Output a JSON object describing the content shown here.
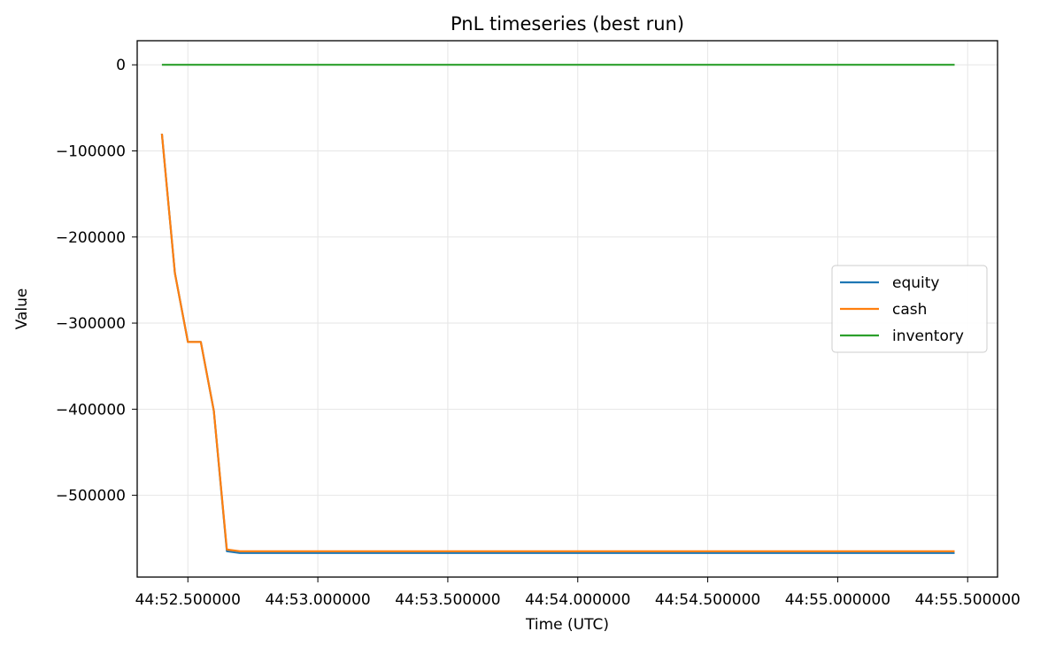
{
  "chart_data": {
    "type": "line",
    "title": "PnL timeseries (best run)",
    "xlabel": "Time (UTC)",
    "ylabel": "Value",
    "x": [
      52.4,
      52.45,
      52.5,
      52.55,
      52.6,
      52.65,
      52.7,
      52.75,
      52.8,
      53.0,
      53.5,
      54.0,
      54.5,
      55.0,
      55.45
    ],
    "xlim": [
      52.305,
      55.615
    ],
    "ylim": [
      -595000,
      28000
    ],
    "xticks": [
      52.5,
      53.0,
      53.5,
      54.0,
      54.5,
      55.0,
      55.5
    ],
    "xtick_labels": [
      "44:52.500000",
      "44:53.000000",
      "44:53.500000",
      "44:54.000000",
      "44:54.500000",
      "44:55.000000",
      "44:55.500000"
    ],
    "yticks": [
      0,
      -100000,
      -200000,
      -300000,
      -400000,
      -500000
    ],
    "ytick_labels": [
      "0",
      "−100000",
      "−200000",
      "−300000",
      "−400000",
      "−500000"
    ],
    "grid": true,
    "legend_position": "center-right",
    "series": [
      {
        "name": "equity",
        "color": "#1f77b4",
        "values": [
          -80000,
          -242000,
          -322000,
          -322000,
          -402000,
          -565000,
          -567000,
          -567000,
          -567000,
          -567000,
          -567000,
          -567000,
          -567000,
          -567000,
          -567000
        ]
      },
      {
        "name": "cash",
        "color": "#ff7f0e",
        "values": [
          -80000,
          -242000,
          -322000,
          -322000,
          -402000,
          -563000,
          -565000,
          -565000,
          -565000,
          -565000,
          -565000,
          -565000,
          -565000,
          -565000,
          -565000
        ]
      },
      {
        "name": "inventory",
        "color": "#2ca02c",
        "values": [
          0,
          0,
          0,
          0,
          0,
          0,
          0,
          0,
          0,
          0,
          0,
          0,
          0,
          0,
          0
        ]
      }
    ]
  }
}
